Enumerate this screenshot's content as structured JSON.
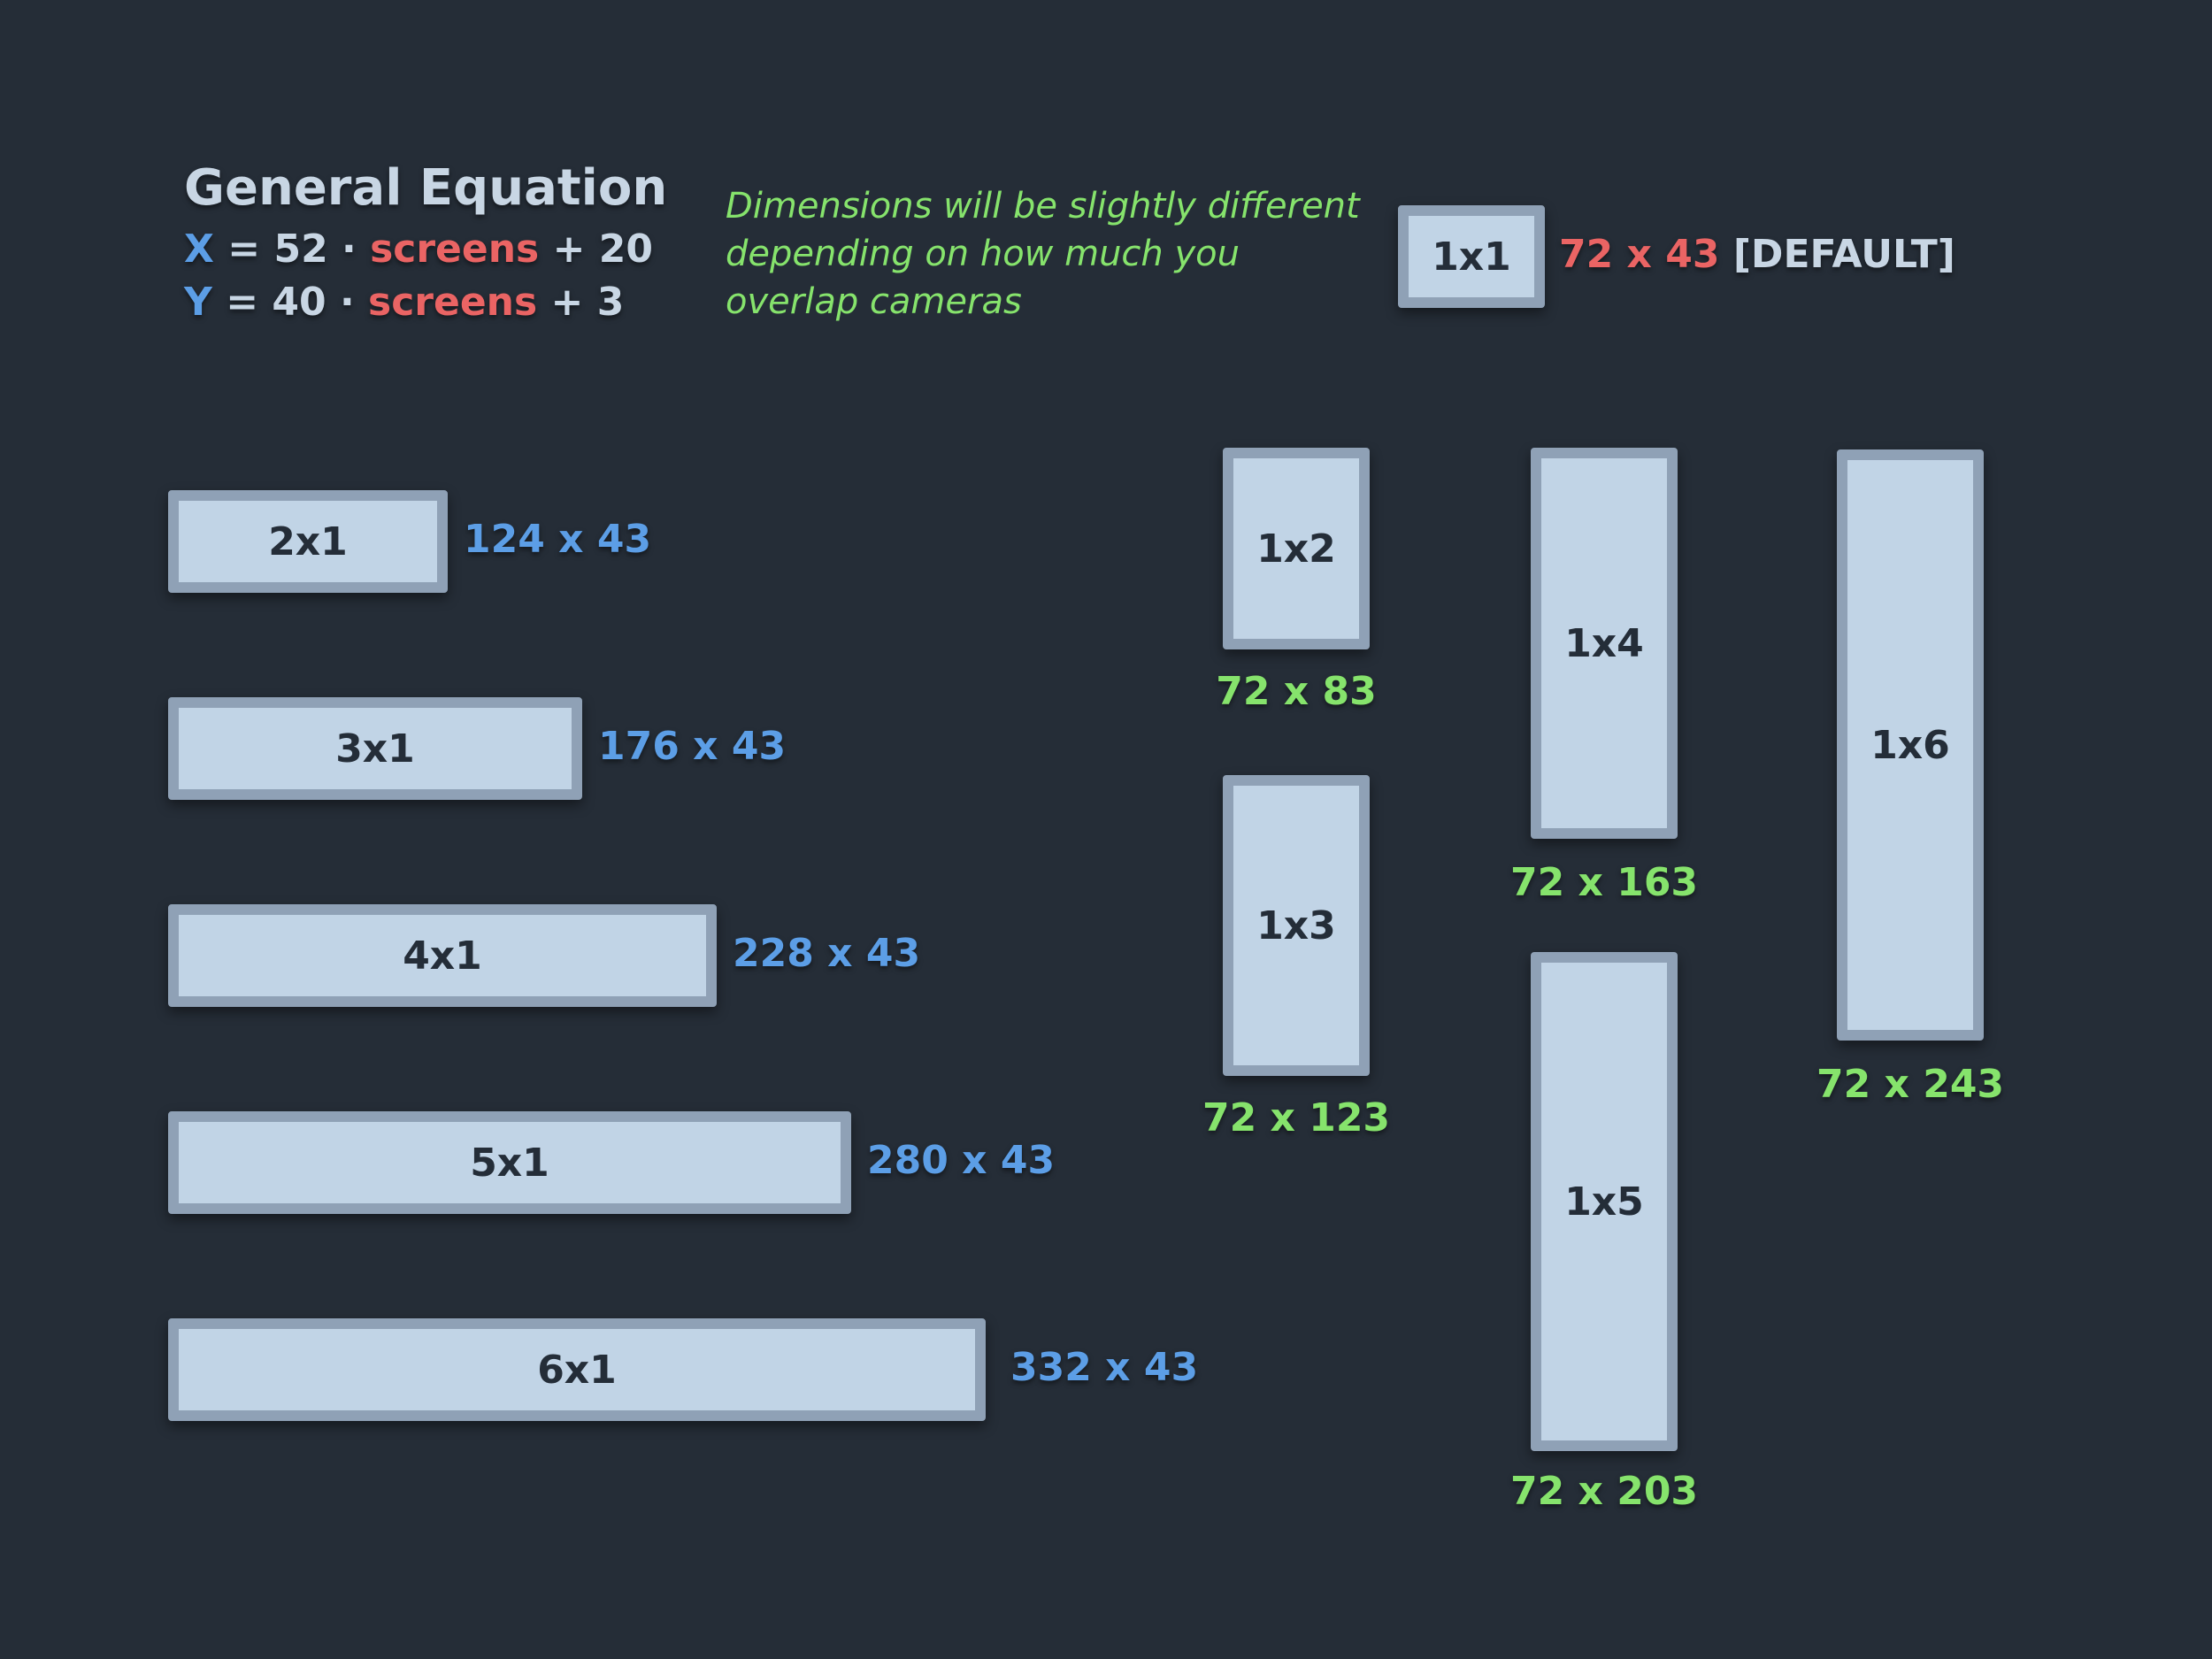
{
  "equation": {
    "title": "General Equation",
    "x_line": {
      "var": "X",
      "eq": "=",
      "coef": "52",
      "dot": "·",
      "term": "screens",
      "plus": "+",
      "const": "20"
    },
    "y_line": {
      "var": "Y",
      "eq": "=",
      "coef": "40",
      "dot": "·",
      "term": "screens",
      "plus": "+",
      "const": "3"
    }
  },
  "note": "Dimensions will be slightly different depending on how much you overlap cameras",
  "default_box": {
    "label": "1x1",
    "dims": "72 x 43",
    "tag": "[DEFAULT]"
  },
  "horizontal": [
    {
      "label": "2x1",
      "dims": "124 x 43"
    },
    {
      "label": "3x1",
      "dims": "176 x 43"
    },
    {
      "label": "4x1",
      "dims": "228 x 43"
    },
    {
      "label": "5x1",
      "dims": "280 x 43"
    },
    {
      "label": "6x1",
      "dims": "332 x 43"
    }
  ],
  "vertical": [
    {
      "label": "1x2",
      "dims": "72 x 83"
    },
    {
      "label": "1x3",
      "dims": "72 x 123"
    },
    {
      "label": "1x4",
      "dims": "72 x 163"
    },
    {
      "label": "1x5",
      "dims": "72 x 203"
    },
    {
      "label": "1x6",
      "dims": "72 x 243"
    }
  ],
  "colors": {
    "background": "#252d37",
    "box_fill": "#c1d4e6",
    "box_border": "#8fa1b6",
    "horizontal_dims": "#5c9ee6",
    "vertical_dims": "#86e36c",
    "screens_term": "#ea6464"
  }
}
